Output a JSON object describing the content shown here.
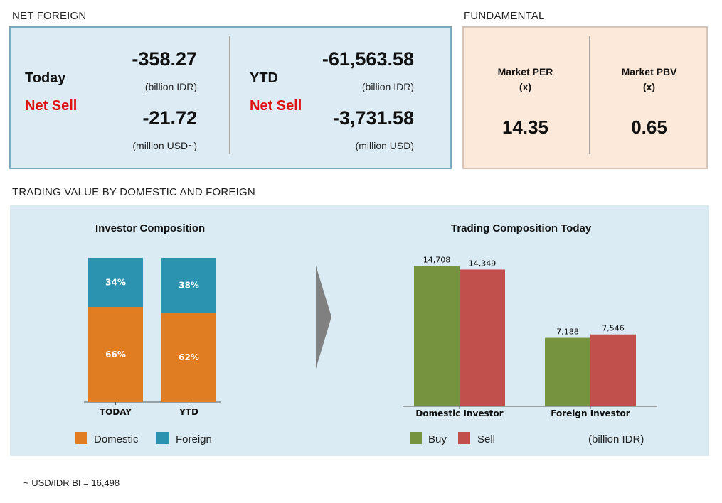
{
  "net_foreign": {
    "section_title": "NET FOREIGN",
    "today": {
      "label": "Today",
      "status": "Net Sell",
      "value_idr": "-358.27",
      "unit_idr": "(billion IDR)",
      "value_usd": "-21.72",
      "unit_usd": "(million USD~)"
    },
    "ytd": {
      "label": "YTD",
      "status": "Net Sell",
      "value_idr": "-61,563.58",
      "unit_idr": "(billion IDR)",
      "value_usd": "-3,731.58",
      "unit_usd": "(million USD)"
    }
  },
  "fundamental": {
    "section_title": "FUNDAMENTAL",
    "per": {
      "label": "Market PER",
      "unit": "(x)",
      "value": "14.35"
    },
    "pbv": {
      "label": "Market PBV",
      "unit": "(x)",
      "value": "0.65"
    }
  },
  "trading": {
    "section_title": "TRADING VALUE BY DOMESTIC AND FOREIGN",
    "unit_note": "(billion IDR)"
  },
  "footnote": "~ USD/IDR BI = 16,498",
  "colors": {
    "domestic": "#e07d22",
    "foreign": "#2b93b0",
    "buy": "#769440",
    "sell": "#c1504d",
    "arrow": "#808080",
    "net_sell": "#e01010"
  },
  "chart_data": [
    {
      "type": "bar",
      "stacked": true,
      "title": "Investor Composition",
      "categories": [
        "TODAY",
        "YTD"
      ],
      "series": [
        {
          "name": "Domestic",
          "values": [
            66,
            62
          ],
          "labels": [
            "66%",
            "62%"
          ],
          "color": "#e07d22"
        },
        {
          "name": "Foreign",
          "values": [
            34,
            38
          ],
          "labels": [
            "34%",
            "38%"
          ],
          "color": "#2b93b0"
        }
      ],
      "ylim": [
        0,
        100
      ],
      "legend": "bottom"
    },
    {
      "type": "bar",
      "title": "Trading Composition Today",
      "categories": [
        "Domestic Investor",
        "Foreign Investor"
      ],
      "series": [
        {
          "name": "Buy",
          "values": [
            14708,
            7188
          ],
          "labels": [
            "14,708",
            "7,188"
          ],
          "color": "#769440"
        },
        {
          "name": "Sell",
          "values": [
            14349,
            7546
          ],
          "labels": [
            "14,349",
            "7,546"
          ],
          "color": "#c1504d"
        }
      ],
      "ylim": [
        0,
        15500
      ],
      "legend": "bottom"
    }
  ]
}
